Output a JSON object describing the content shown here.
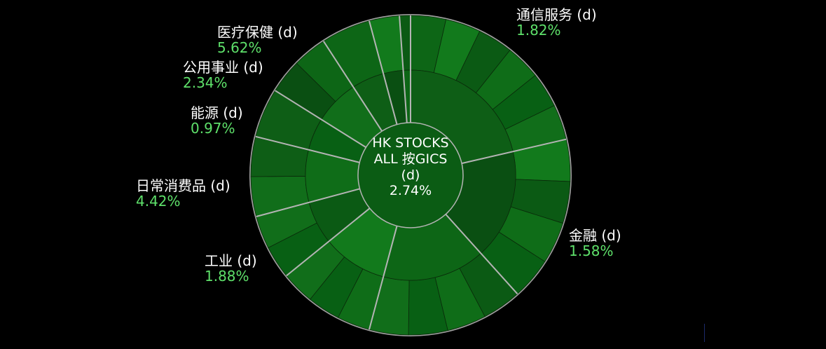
{
  "chart_data": {
    "type": "sunburst",
    "center": {
      "lines": [
        "HK STOCKS",
        "ALL 按GICS",
        "(d)"
      ],
      "value": "2.74%"
    },
    "sectors": [
      {
        "name": "通信服务 (d)",
        "change": "1.82%",
        "start": 0,
        "end": 77
      },
      {
        "name": "金融 (d)",
        "change": "1.58%",
        "start": 77,
        "end": 138
      },
      {
        "name": "",
        "change": "",
        "start": 138,
        "end": 195
      },
      {
        "name": "工业 (d)",
        "change": "1.88%",
        "start": 195,
        "end": 231
      },
      {
        "name": "",
        "change": "",
        "start": 231,
        "end": 255
      },
      {
        "name": "日常消费品 (d)",
        "change": "4.42%",
        "start": 255,
        "end": 284
      },
      {
        "name": "能源 (d)",
        "change": "0.97%",
        "start": 284,
        "end": 302
      },
      {
        "name": "",
        "change": "",
        "start": 302,
        "end": 327
      },
      {
        "name": "公用事业 (d)",
        "change": "2.34%",
        "start": 327,
        "end": 345
      },
      {
        "name": "医疗保健 (d)",
        "change": "5.62%",
        "start": 345,
        "end": 356
      },
      {
        "name": "",
        "change": "",
        "start": 356,
        "end": 360
      }
    ],
    "colors": {
      "background": "#000000",
      "separator": "#b4b4b4",
      "label": "#ffffff",
      "change_positive": "#5ee06a"
    }
  }
}
